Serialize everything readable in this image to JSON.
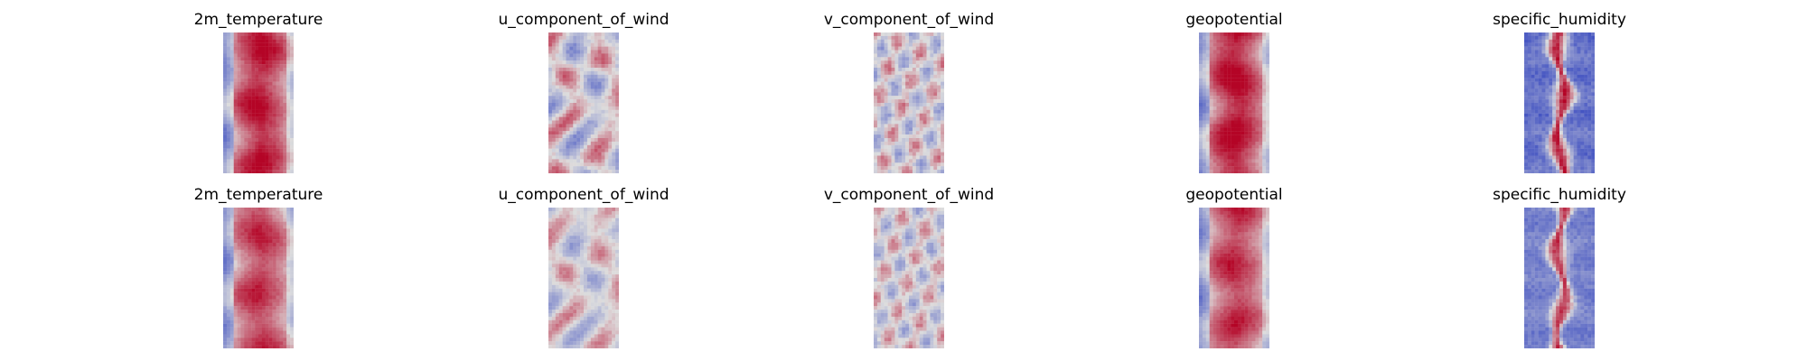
{
  "colormap": {
    "name": "coolwarm",
    "low": "#3b4cc0",
    "mid": "#dddddd",
    "high": "#b40426"
  },
  "chart_data": [
    {
      "type": "heatmap",
      "title": "2m_temperature",
      "row": 1,
      "column": 1,
      "pattern": "warm-band",
      "intensity": 0.92
    },
    {
      "type": "heatmap",
      "title": "u_component_of_wind",
      "row": 1,
      "column": 2,
      "pattern": "wind-streaks",
      "intensity": 0.62
    },
    {
      "type": "heatmap",
      "title": "v_component_of_wind",
      "row": 1,
      "column": 3,
      "pattern": "wind-noise",
      "intensity": 0.58
    },
    {
      "type": "heatmap",
      "title": "geopotential",
      "row": 1,
      "column": 4,
      "pattern": "warm-band",
      "intensity": 0.98
    },
    {
      "type": "heatmap",
      "title": "specific_humidity",
      "row": 1,
      "column": 5,
      "pattern": "humidity-spine",
      "intensity": 0.95
    },
    {
      "type": "heatmap",
      "title": "2m_temperature",
      "row": 2,
      "column": 1,
      "pattern": "warm-band",
      "intensity": 0.78
    },
    {
      "type": "heatmap",
      "title": "u_component_of_wind",
      "row": 2,
      "column": 2,
      "pattern": "wind-streaks",
      "intensity": 0.48
    },
    {
      "type": "heatmap",
      "title": "v_component_of_wind",
      "row": 2,
      "column": 3,
      "pattern": "wind-noise",
      "intensity": 0.52
    },
    {
      "type": "heatmap",
      "title": "geopotential",
      "row": 2,
      "column": 4,
      "pattern": "warm-band",
      "intensity": 0.8
    },
    {
      "type": "heatmap",
      "title": "specific_humidity",
      "row": 2,
      "column": 5,
      "pattern": "humidity-spine",
      "intensity": 0.82
    }
  ]
}
